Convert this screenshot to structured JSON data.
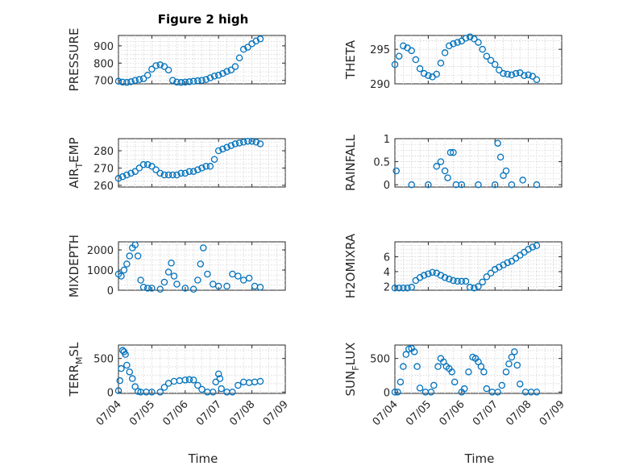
{
  "figure_title": "Figure 2 high",
  "xlabel": "Time",
  "colors": {
    "marker": "#0072BD",
    "axis": "#262626",
    "grid": "#d0d0d0"
  },
  "chart_data": [
    {
      "type": "scatter",
      "panel": "top-left",
      "ylabel": "PRESSURE",
      "ylim": [
        680,
        960
      ],
      "yticks": [
        700,
        800,
        900
      ],
      "x": [
        "07/04 00:00",
        "07/04 03:00",
        "07/04 06:00",
        "07/04 09:00",
        "07/04 12:00",
        "07/04 15:00",
        "07/04 18:00",
        "07/04 21:00",
        "07/05 00:00",
        "07/05 03:00",
        "07/05 06:00",
        "07/05 09:00",
        "07/05 12:00",
        "07/05 15:00",
        "07/05 18:00",
        "07/05 21:00",
        "07/06 00:00",
        "07/06 03:00",
        "07/06 06:00",
        "07/06 09:00",
        "07/06 12:00",
        "07/06 15:00",
        "07/06 18:00",
        "07/06 21:00",
        "07/07 00:00",
        "07/07 03:00",
        "07/07 06:00",
        "07/07 09:00",
        "07/07 12:00",
        "07/07 15:00",
        "07/07 18:00",
        "07/07 21:00",
        "07/08 00:00",
        "07/08 03:00",
        "07/08 06:00"
      ],
      "y": [
        695,
        690,
        688,
        692,
        700,
        705,
        710,
        730,
        765,
        785,
        790,
        780,
        760,
        700,
        690,
        688,
        690,
        692,
        695,
        698,
        700,
        705,
        715,
        725,
        730,
        740,
        752,
        760,
        780,
        830,
        880,
        892,
        912,
        928,
        940
      ],
      "series": [
        {
          "marker": "circle"
        }
      ]
    },
    {
      "type": "scatter",
      "panel": "top-right",
      "ylabel": "THETA",
      "ylim": [
        290,
        297
      ],
      "yticks": [
        290,
        295
      ],
      "x": [
        "07/04 00:00",
        "07/04 03:00",
        "07/04 06:00",
        "07/04 09:00",
        "07/04 12:00",
        "07/04 15:00",
        "07/04 18:00",
        "07/04 21:00",
        "07/05 00:00",
        "07/05 03:00",
        "07/05 06:00",
        "07/05 09:00",
        "07/05 12:00",
        "07/05 15:00",
        "07/05 18:00",
        "07/05 21:00",
        "07/06 00:00",
        "07/06 03:00",
        "07/06 06:00",
        "07/06 09:00",
        "07/06 12:00",
        "07/06 15:00",
        "07/06 18:00",
        "07/06 21:00",
        "07/07 00:00",
        "07/07 03:00",
        "07/07 06:00",
        "07/07 09:00",
        "07/07 12:00",
        "07/07 15:00",
        "07/07 18:00",
        "07/07 21:00",
        "07/08 00:00",
        "07/08 03:00",
        "07/08 06:00"
      ],
      "y": [
        292.8,
        294.0,
        295.5,
        295.2,
        294.8,
        293.5,
        292.2,
        291.5,
        291.2,
        291.0,
        291.4,
        293.0,
        294.5,
        295.5,
        295.8,
        296.0,
        296.2,
        296.6,
        296.8,
        296.5,
        296.0,
        295.0,
        294.0,
        293.4,
        292.8,
        292.0,
        291.5,
        291.4,
        291.3,
        291.5,
        291.6,
        291.2,
        291.3,
        291.1,
        290.6
      ]
    },
    {
      "type": "scatter",
      "panel": "row2-left",
      "ylabel": "AIR_TEMP",
      "ylabel_parts": [
        "AIR",
        "T",
        "EMP"
      ],
      "ylim": [
        259,
        287
      ],
      "yticks": [
        260,
        270,
        280
      ],
      "x": [
        "07/04 00:00",
        "07/04 03:00",
        "07/04 06:00",
        "07/04 09:00",
        "07/04 12:00",
        "07/04 15:00",
        "07/04 18:00",
        "07/04 21:00",
        "07/05 00:00",
        "07/05 03:00",
        "07/05 06:00",
        "07/05 09:00",
        "07/05 12:00",
        "07/05 15:00",
        "07/05 18:00",
        "07/05 21:00",
        "07/06 00:00",
        "07/06 03:00",
        "07/06 06:00",
        "07/06 09:00",
        "07/06 12:00",
        "07/06 15:00",
        "07/06 18:00",
        "07/06 21:00",
        "07/07 00:00",
        "07/07 03:00",
        "07/07 06:00",
        "07/07 09:00",
        "07/07 12:00",
        "07/07 15:00",
        "07/07 18:00",
        "07/07 21:00",
        "07/08 00:00",
        "07/08 03:00",
        "07/08 06:00"
      ],
      "y": [
        264,
        265,
        266,
        267,
        268,
        270,
        272,
        272,
        271,
        269,
        267,
        266,
        266,
        266,
        266,
        267,
        267,
        268,
        268,
        269,
        270,
        271,
        271,
        275,
        280,
        281,
        282,
        283,
        284,
        284.5,
        285,
        285.5,
        285.5,
        285,
        284
      ]
    },
    {
      "type": "scatter",
      "panel": "row2-right",
      "ylabel": "RAINFALL",
      "ylim": [
        -0.05,
        1.0
      ],
      "yticks": [
        0,
        0.5,
        1
      ],
      "x": [
        "07/04 01:00",
        "07/04 12:00",
        "07/05 00:00",
        "07/05 06:00",
        "07/05 09:00",
        "07/05 12:00",
        "07/05 14:00",
        "07/05 16:00",
        "07/05 18:00",
        "07/05 20:00",
        "07/06 00:00",
        "07/06 12:00",
        "07/07 00:00",
        "07/07 02:00",
        "07/07 04:00",
        "07/07 06:00",
        "07/07 08:00",
        "07/07 12:00",
        "07/07 20:00",
        "07/08 06:00"
      ],
      "y": [
        0.3,
        0,
        0,
        0.4,
        0.5,
        0.3,
        0.15,
        0.7,
        0.7,
        0,
        0,
        0,
        0,
        0.9,
        0.6,
        0.2,
        0.3,
        0,
        0.1,
        0
      ]
    },
    {
      "type": "scatter",
      "panel": "row3-left",
      "ylabel": "MIXDEPTH",
      "ylim": [
        0,
        2400
      ],
      "yticks": [
        0,
        1000,
        2000
      ],
      "x": [
        "07/04 00:00",
        "07/04 02:00",
        "07/04 04:00",
        "07/04 06:00",
        "07/04 08:00",
        "07/04 10:00",
        "07/04 12:00",
        "07/04 14:00",
        "07/04 16:00",
        "07/04 18:00",
        "07/04 21:00",
        "07/05 00:00",
        "07/05 06:00",
        "07/05 09:00",
        "07/05 12:00",
        "07/05 14:00",
        "07/05 16:00",
        "07/05 18:00",
        "07/06 00:00",
        "07/06 06:00",
        "07/06 09:00",
        "07/06 11:00",
        "07/06 13:00",
        "07/06 16:00",
        "07/06 20:00",
        "07/07 00:00",
        "07/07 06:00",
        "07/07 10:00",
        "07/07 14:00",
        "07/07 18:00",
        "07/07 22:00",
        "07/08 02:00",
        "07/08 06:00"
      ],
      "y": [
        800,
        700,
        1000,
        1300,
        1700,
        2100,
        2250,
        1700,
        500,
        150,
        100,
        100,
        50,
        400,
        900,
        1350,
        700,
        300,
        100,
        50,
        500,
        1300,
        2100,
        800,
        300,
        200,
        200,
        800,
        700,
        500,
        600,
        200,
        150
      ]
    },
    {
      "type": "scatter",
      "panel": "row3-right",
      "ylabel": "H2OMIXRA",
      "ylim": [
        1.5,
        8
      ],
      "yticks": [
        2,
        4,
        6
      ],
      "x": [
        "07/04 00:00",
        "07/04 03:00",
        "07/04 06:00",
        "07/04 09:00",
        "07/04 12:00",
        "07/04 15:00",
        "07/04 18:00",
        "07/04 21:00",
        "07/05 00:00",
        "07/05 03:00",
        "07/05 06:00",
        "07/05 09:00",
        "07/05 12:00",
        "07/05 15:00",
        "07/05 18:00",
        "07/05 21:00",
        "07/06 00:00",
        "07/06 03:00",
        "07/06 06:00",
        "07/06 09:00",
        "07/06 12:00",
        "07/06 15:00",
        "07/06 18:00",
        "07/06 21:00",
        "07/07 00:00",
        "07/07 03:00",
        "07/07 06:00",
        "07/07 09:00",
        "07/07 12:00",
        "07/07 15:00",
        "07/07 18:00",
        "07/07 21:00",
        "07/08 00:00",
        "07/08 03:00",
        "07/08 06:00"
      ],
      "y": [
        1.8,
        1.8,
        1.8,
        1.8,
        1.9,
        2.8,
        3.2,
        3.5,
        3.7,
        3.9,
        3.8,
        3.5,
        3.2,
        3.0,
        2.8,
        2.7,
        2.7,
        2.7,
        1.9,
        1.8,
        2.0,
        2.6,
        3.3,
        3.8,
        4.3,
        4.6,
        4.9,
        5.2,
        5.4,
        5.8,
        6.2,
        6.6,
        7.0,
        7.3,
        7.5
      ]
    },
    {
      "type": "scatter",
      "panel": "bottom-left",
      "ylabel": "TERR_MSL",
      "ylabel_parts": [
        "TERR",
        "M",
        "SL"
      ],
      "ylim": [
        -20,
        700
      ],
      "yticks": [
        0,
        500
      ],
      "x": [
        "07/04 00:00",
        "07/04 01:00",
        "07/04 02:00",
        "07/04 03:00",
        "07/04 04:00",
        "07/04 05:00",
        "07/04 06:00",
        "07/04 08:00",
        "07/04 10:00",
        "07/04 12:00",
        "07/04 14:00",
        "07/04 16:00",
        "07/04 20:00",
        "07/05 00:00",
        "07/05 06:00",
        "07/05 09:00",
        "07/05 12:00",
        "07/05 16:00",
        "07/05 20:00",
        "07/06 00:00",
        "07/06 03:00",
        "07/06 06:00",
        "07/06 09:00",
        "07/06 12:00",
        "07/06 16:00",
        "07/06 20:00",
        "07/06 22:00",
        "07/07 00:00",
        "07/07 01:00",
        "07/07 02:00",
        "07/07 06:00",
        "07/07 10:00",
        "07/07 14:00",
        "07/07 18:00",
        "07/07 22:00",
        "07/08 02:00",
        "07/08 06:00"
      ],
      "y": [
        20,
        170,
        350,
        620,
        600,
        560,
        400,
        300,
        200,
        80,
        10,
        0,
        0,
        0,
        0,
        70,
        130,
        160,
        170,
        180,
        185,
        180,
        100,
        40,
        0,
        0,
        150,
        270,
        200,
        50,
        0,
        0,
        100,
        150,
        140,
        150,
        160
      ]
    },
    {
      "type": "scatter",
      "panel": "bottom-right",
      "ylabel": "SUN_FLUX",
      "ylabel_parts": [
        "SUN",
        "F",
        "LUX"
      ],
      "ylim": [
        -20,
        700
      ],
      "yticks": [
        0,
        500
      ],
      "x": [
        "07/04 00:00",
        "07/04 02:00",
        "07/04 04:00",
        "07/04 06:00",
        "07/04 08:00",
        "07/04 10:00",
        "07/04 12:00",
        "07/04 14:00",
        "07/04 16:00",
        "07/04 18:00",
        "07/04 22:00",
        "07/05 02:00",
        "07/05 04:00",
        "07/05 07:00",
        "07/05 09:00",
        "07/05 11:00",
        "07/05 13:00",
        "07/05 15:00",
        "07/05 17:00",
        "07/05 19:00",
        "07/06 00:00",
        "07/06 02:00",
        "07/06 05:00",
        "07/06 08:00",
        "07/06 10:00",
        "07/06 12:00",
        "07/06 14:00",
        "07/06 16:00",
        "07/06 18:00",
        "07/06 22:00",
        "07/07 02:00",
        "07/07 05:00",
        "07/07 08:00",
        "07/07 10:00",
        "07/07 12:00",
        "07/07 14:00",
        "07/07 16:00",
        "07/07 18:00",
        "07/07 22:00",
        "07/08 02:00",
        "07/08 06:00"
      ],
      "y": [
        0,
        0,
        150,
        380,
        560,
        640,
        650,
        600,
        380,
        60,
        0,
        0,
        100,
        380,
        500,
        450,
        380,
        350,
        300,
        150,
        0,
        50,
        300,
        520,
        500,
        450,
        380,
        300,
        50,
        0,
        0,
        100,
        300,
        420,
        520,
        600,
        400,
        120,
        0,
        0,
        0
      ]
    }
  ],
  "xtick_labels": [
    "07/04",
    "07/05",
    "07/06",
    "07/07",
    "07/08",
    "07/09"
  ]
}
